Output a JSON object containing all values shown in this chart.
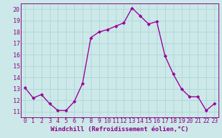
{
  "x": [
    0,
    1,
    2,
    3,
    4,
    5,
    6,
    7,
    8,
    9,
    10,
    11,
    12,
    13,
    14,
    15,
    16,
    17,
    18,
    19,
    20,
    21,
    22,
    23
  ],
  "y": [
    13.1,
    12.2,
    12.5,
    11.7,
    11.1,
    11.1,
    11.9,
    13.5,
    17.5,
    18.0,
    18.2,
    18.5,
    18.8,
    20.1,
    19.4,
    18.7,
    18.9,
    15.9,
    14.3,
    13.0,
    12.3,
    12.3,
    11.1,
    11.7
  ],
  "line_color": "#990099",
  "marker": "D",
  "markersize": 2.2,
  "linewidth": 1.0,
  "xlabel": "Windchill (Refroidissement éolien,°C)",
  "xlim": [
    -0.5,
    23.5
  ],
  "ylim": [
    10.5,
    20.5
  ],
  "yticks": [
    11,
    12,
    13,
    14,
    15,
    16,
    17,
    18,
    19,
    20
  ],
  "xticks": [
    0,
    1,
    2,
    3,
    4,
    5,
    6,
    7,
    8,
    9,
    10,
    11,
    12,
    13,
    14,
    15,
    16,
    17,
    18,
    19,
    20,
    21,
    22,
    23
  ],
  "bg_color": "#cce8e8",
  "grid_color": "#b0d8d8",
  "label_color": "#880088",
  "tick_color": "#880088",
  "xlabel_fontsize": 6.5,
  "tick_fontsize": 6.0
}
